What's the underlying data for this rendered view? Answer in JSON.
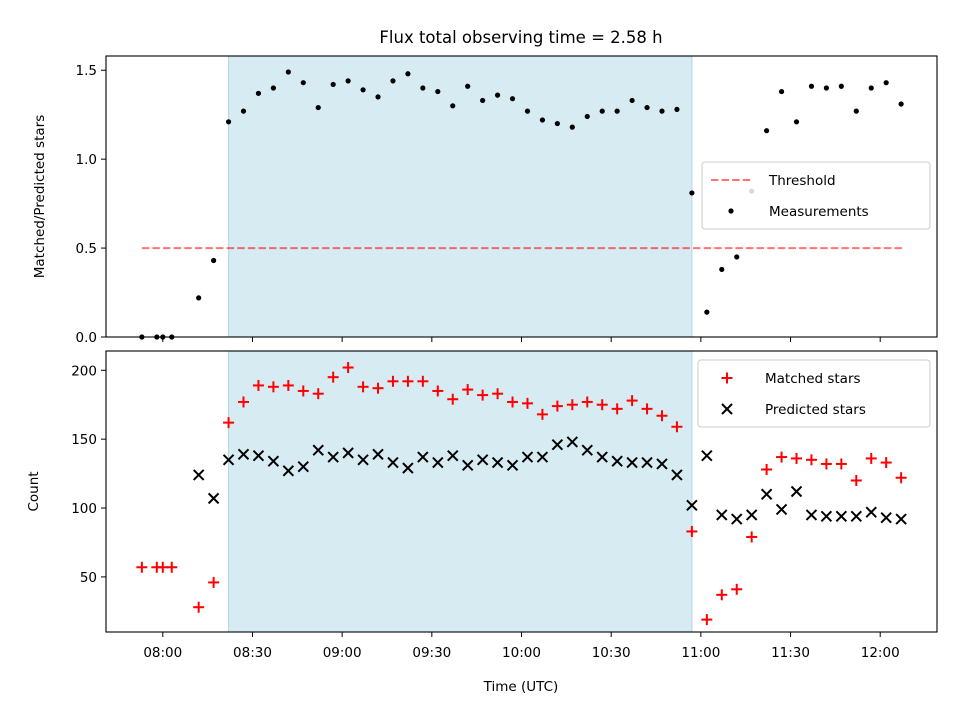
{
  "title": "Flux total observing time = 2.58 h",
  "xlabel": "Time (UTC)",
  "colors": {
    "shade": "#add8e6",
    "threshold": "#ff0000",
    "matched": "#ff0000",
    "predicted": "#000000",
    "measurement": "#000000"
  },
  "chart_data": [
    {
      "type": "scatter",
      "panel": "top",
      "ylabel": "Matched/Predicted stars",
      "ylim": [
        0,
        1.58
      ],
      "yticks": [
        "0.0",
        "0.5",
        "1.0",
        "1.5"
      ],
      "xlim": [
        "07:41",
        "12:19"
      ],
      "xticks": [
        "08:00",
        "08:30",
        "09:00",
        "09:30",
        "10:00",
        "10:30",
        "11:00",
        "11:30",
        "12:00"
      ],
      "shaded_interval": [
        "08:22",
        "10:57"
      ],
      "legend": [
        "Threshold",
        "Measurements"
      ],
      "legend_position": "center-right",
      "threshold": {
        "name": "Threshold",
        "value": 0.5,
        "x_range": [
          "07:53",
          "12:08"
        ],
        "style": "dashed"
      },
      "series": [
        {
          "name": "Measurements",
          "x": [
            "07:53",
            "07:58",
            "08:00",
            "08:03",
            "08:12",
            "08:17",
            "08:22",
            "08:27",
            "08:32",
            "08:37",
            "08:42",
            "08:47",
            "08:52",
            "08:57",
            "09:02",
            "09:07",
            "09:12",
            "09:17",
            "09:22",
            "09:27",
            "09:32",
            "09:37",
            "09:42",
            "09:47",
            "09:52",
            "09:57",
            "10:02",
            "10:07",
            "10:12",
            "10:17",
            "10:22",
            "10:27",
            "10:32",
            "10:37",
            "10:42",
            "10:47",
            "10:52",
            "10:57",
            "11:02",
            "11:07",
            "11:12",
            "11:17",
            "11:22",
            "11:27",
            "11:32",
            "11:37",
            "11:42",
            "11:47",
            "11:52",
            "11:57",
            "12:02",
            "12:07"
          ],
          "y": [
            0.0,
            0.0,
            0.0,
            0.0,
            0.22,
            0.43,
            1.21,
            1.27,
            1.37,
            1.4,
            1.49,
            1.43,
            1.29,
            1.42,
            1.44,
            1.39,
            1.35,
            1.44,
            1.48,
            1.4,
            1.38,
            1.3,
            1.41,
            1.33,
            1.36,
            1.34,
            1.27,
            1.22,
            1.2,
            1.18,
            1.24,
            1.27,
            1.27,
            1.33,
            1.29,
            1.27,
            1.28,
            0.81,
            0.14,
            0.38,
            0.45,
            0.82,
            1.16,
            1.38,
            1.21,
            1.41,
            1.4,
            1.41,
            1.27,
            1.4,
            1.43,
            1.31
          ]
        }
      ]
    },
    {
      "type": "scatter",
      "panel": "bottom",
      "ylabel": "Count",
      "ylim": [
        10,
        214
      ],
      "yticks": [
        "50",
        "100",
        "150",
        "200"
      ],
      "xlim": [
        "07:41",
        "12:19"
      ],
      "xticks": [
        "08:00",
        "08:30",
        "09:00",
        "09:30",
        "10:00",
        "10:30",
        "11:00",
        "11:30",
        "12:00"
      ],
      "xlabel": "Time (UTC)",
      "shaded_interval": [
        "08:22",
        "10:57"
      ],
      "legend": [
        "Matched stars",
        "Predicted stars"
      ],
      "legend_position": "top-right",
      "series": [
        {
          "name": "Matched stars",
          "marker": "+",
          "x": [
            "07:53",
            "07:58",
            "08:00",
            "08:03",
            "08:12",
            "08:17",
            "08:22",
            "08:27",
            "08:32",
            "08:37",
            "08:42",
            "08:47",
            "08:52",
            "08:57",
            "09:02",
            "09:07",
            "09:12",
            "09:17",
            "09:22",
            "09:27",
            "09:32",
            "09:37",
            "09:42",
            "09:47",
            "09:52",
            "09:57",
            "10:02",
            "10:07",
            "10:12",
            "10:17",
            "10:22",
            "10:27",
            "10:32",
            "10:37",
            "10:42",
            "10:47",
            "10:52",
            "10:57",
            "11:02",
            "11:07",
            "11:12",
            "11:17",
            "11:22",
            "11:27",
            "11:32",
            "11:37",
            "11:42",
            "11:47",
            "11:52",
            "11:57",
            "12:02",
            "12:07"
          ],
          "y": [
            57,
            57,
            57,
            57,
            28,
            46,
            162,
            177,
            189,
            188,
            189,
            185,
            183,
            195,
            202,
            188,
            187,
            192,
            192,
            192,
            185,
            179,
            186,
            182,
            183,
            177,
            176,
            168,
            174,
            175,
            177,
            175,
            172,
            178,
            172,
            167,
            159,
            83,
            19,
            37,
            41,
            79,
            128,
            137,
            136,
            135,
            132,
            132,
            120,
            136,
            133,
            122
          ]
        },
        {
          "name": "Predicted stars",
          "marker": "x",
          "x": [
            "08:12",
            "08:17",
            "08:22",
            "08:27",
            "08:32",
            "08:37",
            "08:42",
            "08:47",
            "08:52",
            "08:57",
            "09:02",
            "09:07",
            "09:12",
            "09:17",
            "09:22",
            "09:27",
            "09:32",
            "09:37",
            "09:42",
            "09:47",
            "09:52",
            "09:57",
            "10:02",
            "10:07",
            "10:12",
            "10:17",
            "10:22",
            "10:27",
            "10:32",
            "10:37",
            "10:42",
            "10:47",
            "10:52",
            "10:57",
            "11:02",
            "11:07",
            "11:12",
            "11:17",
            "11:22",
            "11:27",
            "11:32",
            "11:37",
            "11:42",
            "11:47",
            "11:52",
            "11:57",
            "12:02",
            "12:07"
          ],
          "y": [
            124,
            107,
            135,
            139,
            138,
            134,
            127,
            130,
            142,
            137,
            140,
            135,
            139,
            133,
            129,
            137,
            133,
            138,
            131,
            135,
            133,
            131,
            137,
            137,
            146,
            148,
            142,
            137,
            134,
            133,
            133,
            132,
            124,
            102,
            138,
            95,
            92,
            95,
            110,
            99,
            112,
            95,
            94,
            94,
            94,
            97,
            93,
            92
          ]
        }
      ]
    }
  ]
}
